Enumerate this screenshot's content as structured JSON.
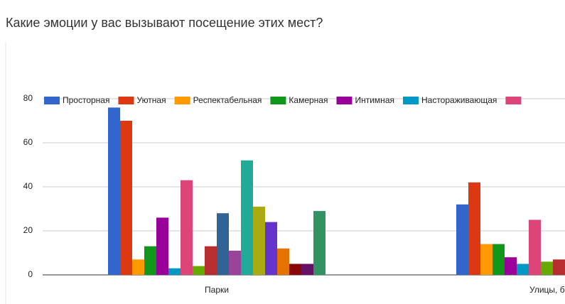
{
  "title": "Какие эмоции у вас вызывают посещение этих мест?",
  "chart_data": {
    "type": "bar",
    "categories": [
      "Парки",
      "Улицы, б"
    ],
    "ylim": [
      0,
      80
    ],
    "yticks": [
      0,
      20,
      40,
      60,
      80
    ],
    "grid": true,
    "series": [
      {
        "name": "Просторная",
        "color": "#3366cc",
        "values": [
          76,
          32
        ]
      },
      {
        "name": "Уютная",
        "color": "#dc3912",
        "values": [
          70,
          42
        ]
      },
      {
        "name": "Респектабельная",
        "color": "#ff9900",
        "values": [
          7,
          14
        ]
      },
      {
        "name": "Камерная",
        "color": "#109618",
        "values": [
          13,
          14
        ]
      },
      {
        "name": "Интимная",
        "color": "#990099",
        "values": [
          26,
          8
        ]
      },
      {
        "name": "Настораживающая",
        "color": "#0099c6",
        "values": [
          3,
          5
        ]
      },
      {
        "color": "#dd4477",
        "values": [
          43,
          25
        ]
      },
      {
        "color": "#66aa00",
        "values": [
          4,
          6
        ]
      },
      {
        "color": "#b82e2e",
        "values": [
          13,
          7
        ]
      },
      {
        "color": "#316395",
        "values": [
          28,
          null
        ]
      },
      {
        "color": "#994499",
        "values": [
          11,
          null
        ]
      },
      {
        "color": "#22aa99",
        "values": [
          52,
          null
        ]
      },
      {
        "color": "#aaaa11",
        "values": [
          31,
          null
        ]
      },
      {
        "color": "#6633cc",
        "values": [
          24,
          null
        ]
      },
      {
        "color": "#e67300",
        "values": [
          12,
          null
        ]
      },
      {
        "color": "#8b0707",
        "values": [
          5,
          null
        ]
      },
      {
        "color": "#651067",
        "values": [
          5,
          null
        ]
      },
      {
        "color": "#329262",
        "values": [
          29,
          null
        ]
      }
    ]
  }
}
